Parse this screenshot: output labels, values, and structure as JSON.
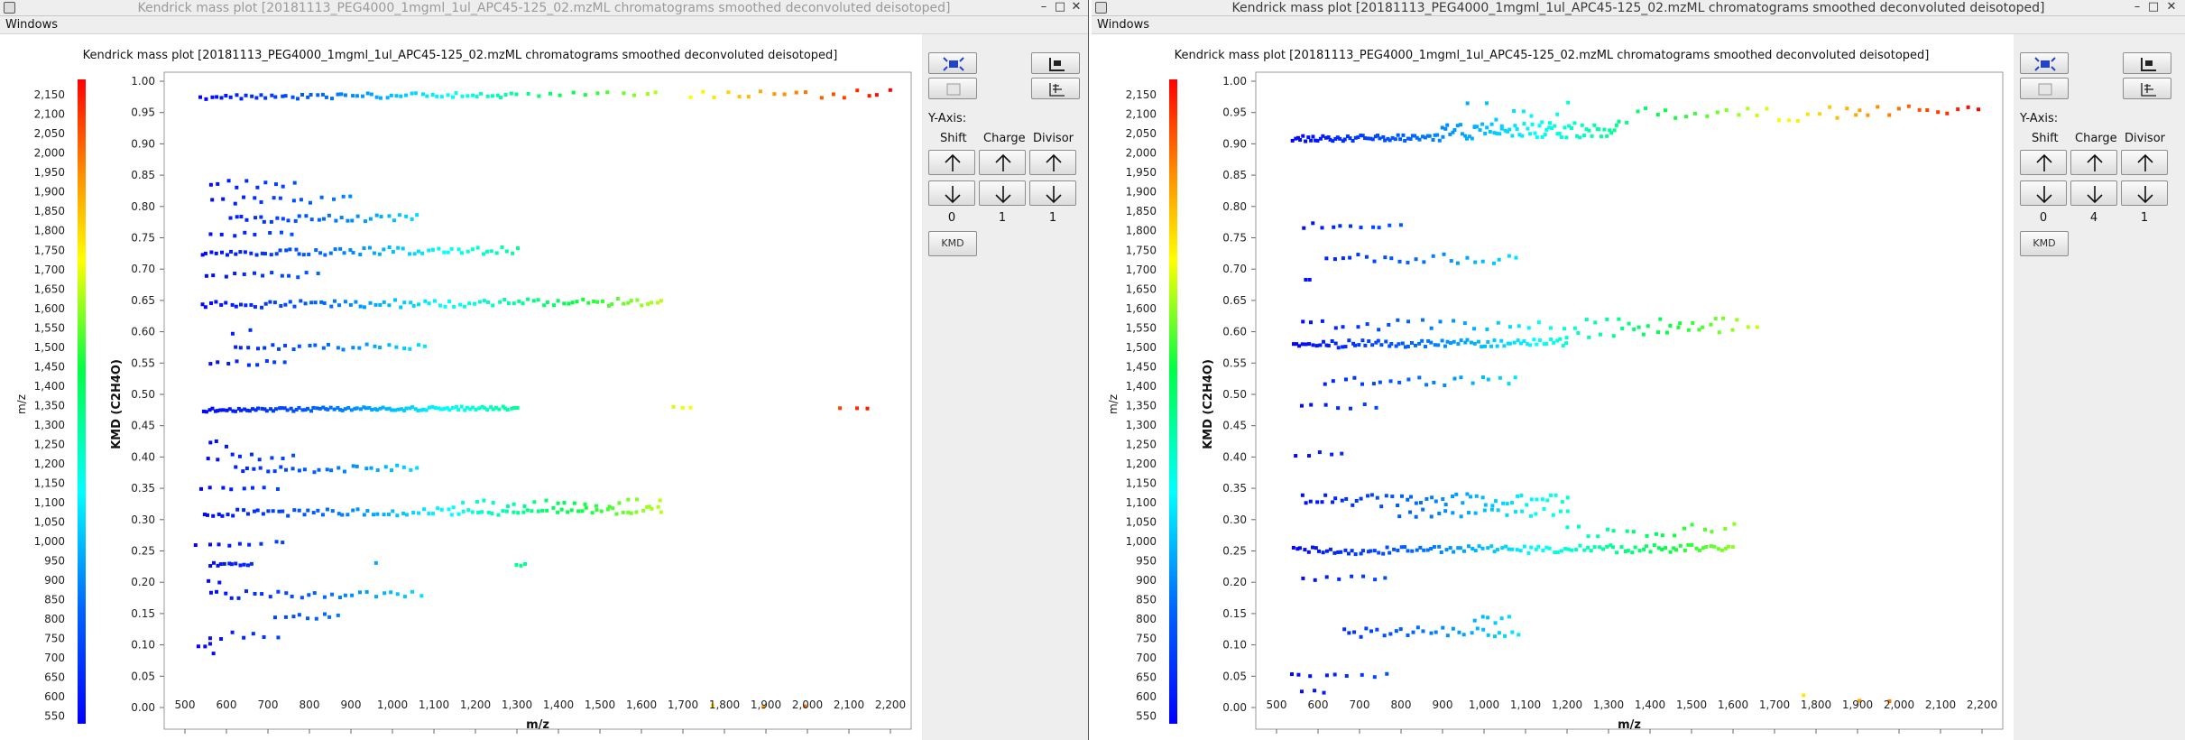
{
  "windows": [
    {
      "id": "left",
      "title": "Kendrick mass plot [20181113_PEG4000_1mgml_1ul_APC45-125_02.mzML chromatograms smoothed deconvoluted deisotoped]",
      "menu": "Windows",
      "chart_data": {
        "type": "scatter",
        "title": "Kendrick mass plot [20181113_PEG4000_1mgml_1ul_APC45-125_02.mzML chromatograms smoothed deconvoluted deisotoped]",
        "xlabel": "m/z",
        "ylabel": "KMD (C2H4O)",
        "colorbar_label": "m/z",
        "xlim": [
          450,
          2250
        ],
        "ylim": [
          0,
          1.0
        ],
        "x_ticks": [
          "500",
          "600",
          "700",
          "800",
          "900",
          "1,000",
          "1,100",
          "1,200",
          "1,300",
          "1,400",
          "1,500",
          "1,600",
          "1,700",
          "1,800",
          "1,900",
          "2,000",
          "2,100",
          "2,200"
        ],
        "y_ticks": [
          "0.00",
          "0.05",
          "0.10",
          "0.15",
          "0.20",
          "0.25",
          "0.30",
          "0.35",
          "0.40",
          "0.45",
          "0.50",
          "0.55",
          "0.60",
          "0.65",
          "0.70",
          "0.75",
          "0.80",
          "0.85",
          "0.90",
          "0.95",
          "1.00"
        ],
        "colorbar_ticks": [
          "550",
          "600",
          "650",
          "700",
          "750",
          "800",
          "850",
          "900",
          "950",
          "1,000",
          "1,050",
          "1,100",
          "1,150",
          "1,200",
          "1,250",
          "1,300",
          "1,350",
          "1,400",
          "1,450",
          "1,500",
          "1,550",
          "1,600",
          "1,650",
          "1,700",
          "1,750",
          "1,800",
          "1,850",
          "1,900",
          "1,950",
          "2,000",
          "2,050",
          "2,100",
          "2,150"
        ],
        "colorbar_range": [
          530,
          2190
        ],
        "series_bands": [
          {
            "kmd": 0.975,
            "x_from": 540,
            "x_to": 1300,
            "step": 12,
            "jitter": 0.004
          },
          {
            "kmd": 0.98,
            "x_from": 1320,
            "x_to": 1640,
            "step": 30,
            "jitter": 0.006
          },
          {
            "kmd": 0.978,
            "x_from": 1720,
            "x_to": 2200,
            "step": 28,
            "jitter": 0.006
          },
          {
            "kmd": 0.835,
            "x_from": 560,
            "x_to": 760,
            "step": 22,
            "jitter": 0.006
          },
          {
            "kmd": 0.81,
            "x_from": 570,
            "x_to": 900,
            "step": 24,
            "jitter": 0.006
          },
          {
            "kmd": 0.78,
            "x_from": 610,
            "x_to": 1060,
            "step": 14,
            "jitter": 0.005
          },
          {
            "kmd": 0.755,
            "x_from": 560,
            "x_to": 760,
            "step": 30,
            "jitter": 0.005
          },
          {
            "kmd": 0.725,
            "x_from": 540,
            "x_to": 720,
            "step": 12,
            "jitter": 0.003
          },
          {
            "kmd": 0.728,
            "x_from": 730,
            "x_to": 1300,
            "step": 12,
            "jitter": 0.006
          },
          {
            "kmd": 0.69,
            "x_from": 550,
            "x_to": 820,
            "step": 22,
            "jitter": 0.004
          },
          {
            "kmd": 0.643,
            "x_from": 540,
            "x_to": 1650,
            "step": 12,
            "jitter": 0.006
          },
          {
            "kmd": 0.6,
            "x_from": 620,
            "x_to": 660,
            "step": 40,
            "jitter": 0.004
          },
          {
            "kmd": 0.575,
            "x_from": 620,
            "x_to": 1080,
            "step": 18,
            "jitter": 0.005
          },
          {
            "kmd": 0.55,
            "x_from": 560,
            "x_to": 740,
            "step": 22,
            "jitter": 0.004
          },
          {
            "kmd": 0.475,
            "x_from": 545,
            "x_to": 1300,
            "step": 7,
            "jitter": 0.003
          },
          {
            "kmd": 0.48,
            "x_from": 1680,
            "x_to": 1720,
            "step": 20,
            "jitter": 0.002
          },
          {
            "kmd": 0.48,
            "x_from": 2080,
            "x_to": 2150,
            "step": 30,
            "jitter": 0.004
          },
          {
            "kmd": 0.42,
            "x_from": 560,
            "x_to": 600,
            "step": 20,
            "jitter": 0.006
          },
          {
            "kmd": 0.4,
            "x_from": 560,
            "x_to": 760,
            "step": 26,
            "jitter": 0.005
          },
          {
            "kmd": 0.38,
            "x_from": 620,
            "x_to": 1060,
            "step": 16,
            "jitter": 0.005
          },
          {
            "kmd": 0.35,
            "x_from": 540,
            "x_to": 720,
            "step": 26,
            "jitter": 0.005
          },
          {
            "kmd": 0.31,
            "x_from": 545,
            "x_to": 1650,
            "step": 12,
            "jitter": 0.006
          },
          {
            "kmd": 0.325,
            "x_from": 1150,
            "x_to": 1640,
            "step": 24,
            "jitter": 0.006
          },
          {
            "kmd": 0.26,
            "x_from": 530,
            "x_to": 740,
            "step": 28,
            "jitter": 0.004
          },
          {
            "kmd": 0.228,
            "x_from": 560,
            "x_to": 660,
            "step": 9,
            "jitter": 0.003
          },
          {
            "kmd": 0.232,
            "x_from": 960,
            "x_to": 960,
            "step": 10,
            "jitter": 0.002
          },
          {
            "kmd": 0.228,
            "x_from": 1300,
            "x_to": 1320,
            "step": 10,
            "jitter": 0.002
          },
          {
            "kmd": 0.2,
            "x_from": 560,
            "x_to": 580,
            "step": 20,
            "jitter": 0.004
          },
          {
            "kmd": 0.18,
            "x_from": 560,
            "x_to": 1070,
            "step": 18,
            "jitter": 0.006
          },
          {
            "kmd": 0.145,
            "x_from": 720,
            "x_to": 870,
            "step": 20,
            "jitter": 0.004
          },
          {
            "kmd": 0.115,
            "x_from": 560,
            "x_to": 720,
            "step": 26,
            "jitter": 0.006
          },
          {
            "kmd": 0.1,
            "x_from": 530,
            "x_to": 560,
            "step": 15,
            "jitter": 0.004
          },
          {
            "kmd": 0.087,
            "x_from": 570,
            "x_to": 570,
            "step": 10,
            "jitter": 0.002
          },
          {
            "kmd": 0.003,
            "x_from": 1770,
            "x_to": 1770,
            "step": 10,
            "jitter": 0.001
          },
          {
            "kmd": 0.002,
            "x_from": 1910,
            "x_to": 1980,
            "step": 70,
            "jitter": 0.001
          }
        ]
      },
      "controls": {
        "yaxis_label": "Y-Axis:",
        "columns": [
          "Shift",
          "Charge",
          "Divisor"
        ],
        "values": [
          "0",
          "1",
          "1"
        ],
        "kmd_button": "KMD"
      }
    },
    {
      "id": "right",
      "title": "Kendrick mass plot [20181113_PEG4000_1mgml_1ul_APC45-125_02.mzML chromatograms smoothed deconvoluted deisotoped]",
      "menu": "Windows",
      "chart_data": {
        "type": "scatter",
        "title": "Kendrick mass plot [20181113_PEG4000_1mgml_1ul_APC45-125_02.mzML chromatograms smoothed deconvoluted deisotoped]",
        "xlabel": "m/z",
        "ylabel": "KMD (C2H4O)",
        "colorbar_label": "m/z",
        "xlim": [
          450,
          2250
        ],
        "ylim": [
          0,
          1.0
        ],
        "x_ticks": [
          "500",
          "600",
          "700",
          "800",
          "900",
          "1,000",
          "1,100",
          "1,200",
          "1,300",
          "1,400",
          "1,500",
          "1,600",
          "1,700",
          "1,800",
          "1,900",
          "2,000",
          "2,100",
          "2,200"
        ],
        "y_ticks": [
          "0.00",
          "0.05",
          "0.10",
          "0.15",
          "0.20",
          "0.25",
          "0.30",
          "0.35",
          "0.40",
          "0.45",
          "0.50",
          "0.55",
          "0.60",
          "0.65",
          "0.70",
          "0.75",
          "0.80",
          "0.85",
          "0.90",
          "0.95",
          "1.00"
        ],
        "colorbar_ticks": [
          "550",
          "600",
          "650",
          "700",
          "750",
          "800",
          "850",
          "900",
          "950",
          "1,000",
          "1,050",
          "1,100",
          "1,150",
          "1,200",
          "1,250",
          "1,300",
          "1,350",
          "1,400",
          "1,450",
          "1,500",
          "1,550",
          "1,600",
          "1,650",
          "1,700",
          "1,750",
          "1,800",
          "1,850",
          "1,900",
          "1,950",
          "2,000",
          "2,050",
          "2,100",
          "2,150"
        ],
        "colorbar_range": [
          530,
          2190
        ],
        "series_bands": [
          {
            "kmd": 0.908,
            "x_from": 540,
            "x_to": 900,
            "step": 6,
            "jitter": 0.005
          },
          {
            "kmd": 0.92,
            "x_from": 900,
            "x_to": 1320,
            "step": 6,
            "jitter": 0.012
          },
          {
            "kmd": 0.945,
            "x_from": 960,
            "x_to": 1200,
            "step": 22,
            "jitter": 0.02
          },
          {
            "kmd": 0.945,
            "x_from": 1320,
            "x_to": 1900,
            "step": 24,
            "jitter": 0.012
          },
          {
            "kmd": 0.955,
            "x_from": 1900,
            "x_to": 2190,
            "step": 24,
            "jitter": 0.01
          },
          {
            "kmd": 0.77,
            "x_from": 560,
            "x_to": 800,
            "step": 24,
            "jitter": 0.006
          },
          {
            "kmd": 0.715,
            "x_from": 620,
            "x_to": 1080,
            "step": 20,
            "jitter": 0.008
          },
          {
            "kmd": 0.685,
            "x_from": 570,
            "x_to": 580,
            "step": 10,
            "jitter": 0.003
          },
          {
            "kmd": 0.61,
            "x_from": 560,
            "x_to": 1660,
            "step": 26,
            "jitter": 0.008
          },
          {
            "kmd": 0.58,
            "x_from": 540,
            "x_to": 1200,
            "step": 8,
            "jitter": 0.006
          },
          {
            "kmd": 0.6,
            "x_from": 1200,
            "x_to": 1600,
            "step": 26,
            "jitter": 0.01
          },
          {
            "kmd": 0.52,
            "x_from": 620,
            "x_to": 1080,
            "step": 22,
            "jitter": 0.008
          },
          {
            "kmd": 0.48,
            "x_from": 560,
            "x_to": 740,
            "step": 28,
            "jitter": 0.004
          },
          {
            "kmd": 0.405,
            "x_from": 550,
            "x_to": 660,
            "step": 30,
            "jitter": 0.004
          },
          {
            "kmd": 0.33,
            "x_from": 560,
            "x_to": 1200,
            "step": 12,
            "jitter": 0.01
          },
          {
            "kmd": 0.31,
            "x_from": 800,
            "x_to": 1200,
            "step": 18,
            "jitter": 0.006
          },
          {
            "kmd": 0.285,
            "x_from": 1200,
            "x_to": 1600,
            "step": 24,
            "jitter": 0.012
          },
          {
            "kmd": 0.25,
            "x_from": 540,
            "x_to": 1600,
            "step": 9,
            "jitter": 0.006
          },
          {
            "kmd": 0.205,
            "x_from": 570,
            "x_to": 760,
            "step": 26,
            "jitter": 0.006
          },
          {
            "kmd": 0.12,
            "x_from": 660,
            "x_to": 1080,
            "step": 14,
            "jitter": 0.008
          },
          {
            "kmd": 0.14,
            "x_from": 980,
            "x_to": 1060,
            "step": 16,
            "jitter": 0.006
          },
          {
            "kmd": 0.05,
            "x_from": 530,
            "x_to": 760,
            "step": 28,
            "jitter": 0.004
          },
          {
            "kmd": 0.025,
            "x_from": 560,
            "x_to": 620,
            "step": 30,
            "jitter": 0.004
          },
          {
            "kmd": 0.02,
            "x_from": 1770,
            "x_to": 1770,
            "step": 10,
            "jitter": 0.001
          },
          {
            "kmd": 0.01,
            "x_from": 1900,
            "x_to": 1970,
            "step": 70,
            "jitter": 0.001
          }
        ]
      },
      "controls": {
        "yaxis_label": "Y-Axis:",
        "columns": [
          "Shift",
          "Charge",
          "Divisor"
        ],
        "values": [
          "0",
          "4",
          "1"
        ],
        "kmd_button": "KMD"
      }
    }
  ]
}
